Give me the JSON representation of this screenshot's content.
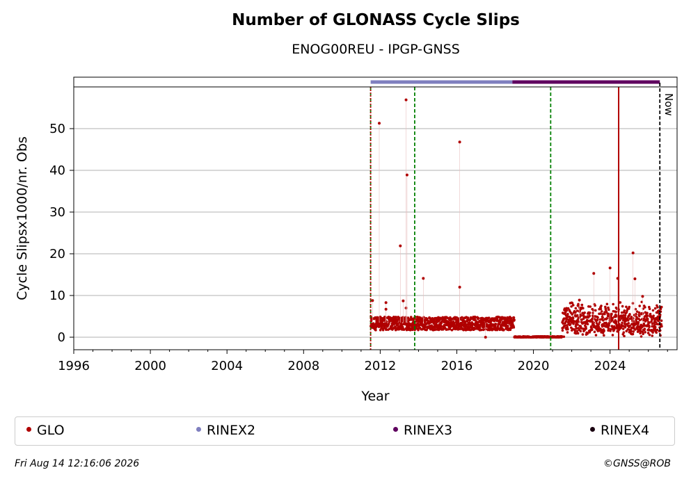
{
  "chart_data": {
    "type": "scatter",
    "title": "Number of GLONASS Cycle Slips",
    "subtitle": "ENOG00REU - IPGP-GNSS",
    "xlabel": "Year",
    "ylabel": "Cycle Slipsx1000/nr. Obs",
    "xlim": [
      1996,
      2027.5
    ],
    "ylim": [
      -3,
      60
    ],
    "x_ticks": [
      "1996",
      "2000",
      "2004",
      "2008",
      "2012",
      "2016",
      "2020",
      "2024"
    ],
    "y_ticks": [
      "0",
      "10",
      "20",
      "30",
      "40",
      "50"
    ],
    "grid": "horizontal",
    "legend_position": "bottom",
    "series": [
      {
        "name": "GLO",
        "color": "#b00000",
        "segments": [
          {
            "x_start": 2011.5,
            "x_end": 2019.0,
            "y_center": 3.3,
            "y_spread": 1.6
          },
          {
            "x_start": 2019.0,
            "x_end": 2021.5,
            "y_center": 0.0,
            "y_spread": 0.2
          },
          {
            "x_start": 2021.5,
            "x_end": 2026.7,
            "y_center": 3.0,
            "y_spread": 6.0
          }
        ],
        "outliers": [
          {
            "x": 2011.6,
            "y": 8.8
          },
          {
            "x": 2011.95,
            "y": 51.3
          },
          {
            "x": 2012.3,
            "y": 8.3
          },
          {
            "x": 2012.3,
            "y": 6.7
          },
          {
            "x": 2013.05,
            "y": 21.9
          },
          {
            "x": 2013.2,
            "y": 8.7
          },
          {
            "x": 2013.35,
            "y": 7.0
          },
          {
            "x": 2013.35,
            "y": 56.9
          },
          {
            "x": 2013.4,
            "y": 38.9
          },
          {
            "x": 2014.25,
            "y": 14.1
          },
          {
            "x": 2016.15,
            "y": 46.8
          },
          {
            "x": 2016.15,
            "y": 12.0
          },
          {
            "x": 2017.5,
            "y": 0.0
          },
          {
            "x": 2021.7,
            "y": 3.8
          },
          {
            "x": 2022.4,
            "y": 8.9
          },
          {
            "x": 2023.15,
            "y": 15.3
          },
          {
            "x": 2024.0,
            "y": 16.6
          },
          {
            "x": 2024.4,
            "y": 14.1
          },
          {
            "x": 2025.2,
            "y": 20.2
          },
          {
            "x": 2025.3,
            "y": 14.0
          },
          {
            "x": 2025.7,
            "y": 9.8
          }
        ]
      },
      {
        "name": "RINEX2",
        "color": "#7f7fbf",
        "bar_x": [
          2011.5,
          2018.9
        ]
      },
      {
        "name": "RINEX3",
        "color": "#5f005f",
        "bar_x": [
          2018.9,
          2026.6
        ]
      },
      {
        "name": "RINEX4",
        "color": "#1a0010",
        "bar_x": []
      }
    ],
    "vertical_lines": [
      {
        "x": 2011.5,
        "color": "#008000",
        "style": "dashed"
      },
      {
        "x": 2011.5,
        "color": "#b00000",
        "style": "dotted"
      },
      {
        "x": 2013.8,
        "color": "#008000",
        "style": "dashed"
      },
      {
        "x": 2020.9,
        "color": "#008000",
        "style": "dashed"
      },
      {
        "x": 2024.45,
        "color": "#b00000",
        "style": "solid"
      },
      {
        "x": 2026.6,
        "color": "#000000",
        "style": "dashed",
        "label": "Now"
      }
    ]
  },
  "legend": [
    {
      "label": "GLO",
      "color": "#b00000"
    },
    {
      "label": "RINEX2",
      "color": "#7f7fbf"
    },
    {
      "label": "RINEX3",
      "color": "#5f005f"
    },
    {
      "label": "RINEX4",
      "color": "#1a0010"
    }
  ],
  "footer": {
    "timestamp": "Fri Aug 14 12:16:06 2026",
    "copyright": "©GNSS@ROB"
  }
}
